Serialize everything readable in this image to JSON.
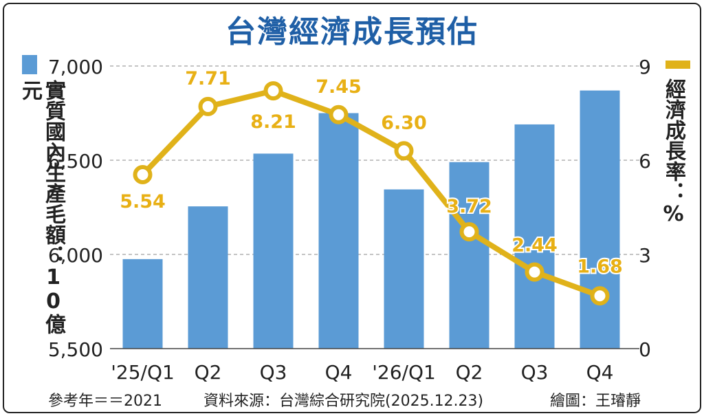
{
  "title": "台灣經濟成長預估",
  "left_axis_label": "實質國內生產毛額：10億元",
  "right_axis_label": "經濟成長率：%",
  "footer": {
    "base_year": "參考年＝＝2021",
    "source": "資料來源：台灣綜合研究院(2025.12.23)",
    "credit": "繪圖：王璿靜"
  },
  "colors": {
    "bar": "#5b9bd5",
    "line": "#e0b21a",
    "label": "#e8b015",
    "title": "#1f5fa6"
  },
  "chart_data": {
    "type": "bar+line",
    "categories": [
      "'25/Q1",
      "Q2",
      "Q3",
      "Q4",
      "'26/Q1",
      "Q2",
      "Q3",
      "Q4"
    ],
    "series": [
      {
        "name": "實質國內生產毛額",
        "type": "bar",
        "axis": "left",
        "values": [
          5975,
          6255,
          6535,
          6750,
          6345,
          6490,
          6690,
          6870
        ]
      },
      {
        "name": "經濟成長率",
        "type": "line",
        "axis": "right",
        "values": [
          5.54,
          7.71,
          8.21,
          7.45,
          6.3,
          3.72,
          2.44,
          1.68
        ],
        "labels": [
          "5.54",
          "7.71",
          "8.21",
          "7.45",
          "6.30",
          "3.72",
          "2.44",
          "1.68"
        ]
      }
    ],
    "left_axis": {
      "ylim": [
        5500,
        7000
      ],
      "ticks": [
        5500,
        6000,
        6500,
        7000
      ],
      "tick_labels": [
        "5,500",
        "6,000",
        "6,500",
        "7,000"
      ]
    },
    "right_axis": {
      "ylim": [
        0,
        9
      ],
      "ticks": [
        0,
        3,
        6,
        9
      ],
      "tick_labels": [
        "0",
        "3",
        "6",
        "9"
      ]
    },
    "grid": true
  }
}
